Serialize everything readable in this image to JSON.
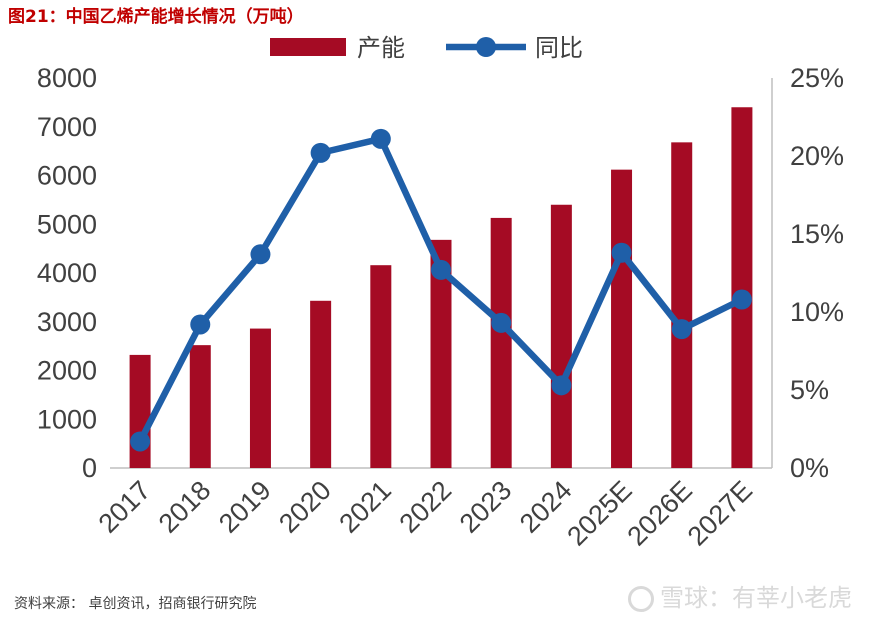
{
  "title": "图21：中国乙烯产能增长情况（万吨）",
  "source": "资料来源：  卓创资讯，招商银行研究院",
  "watermark": "雪球：有莘小老虎",
  "colors": {
    "bar": "#a50b24",
    "line": "#1f5fa8",
    "axis": "#bfbfbf",
    "title": "#c00000"
  },
  "chart_data": {
    "type": "bar",
    "categories": [
      "2017",
      "2018",
      "2019",
      "2020",
      "2021",
      "2022",
      "2023",
      "2024",
      "2025E",
      "2026E",
      "2027E"
    ],
    "series": [
      {
        "name": "产能",
        "type": "bar",
        "axis": "left",
        "values": [
          2320,
          2520,
          2860,
          3430,
          4160,
          4680,
          5130,
          5400,
          6120,
          6680,
          7400
        ]
      },
      {
        "name": "同比",
        "type": "line",
        "axis": "right",
        "values": [
          1.7,
          9.2,
          13.7,
          20.2,
          21.1,
          12.7,
          9.3,
          5.3,
          13.8,
          8.9,
          10.8
        ]
      }
    ],
    "y_left": {
      "ylim": [
        0,
        8000
      ],
      "ticks": [
        "0",
        "1000",
        "2000",
        "3000",
        "4000",
        "5000",
        "6000",
        "7000",
        "8000"
      ]
    },
    "y_right": {
      "ylim": [
        0,
        25
      ],
      "ticks": [
        "0%",
        "5%",
        "10%",
        "15%",
        "20%",
        "25%"
      ]
    },
    "legend": {
      "placement": "top-center",
      "entries": [
        "产能",
        "同比"
      ]
    },
    "grid": false
  }
}
